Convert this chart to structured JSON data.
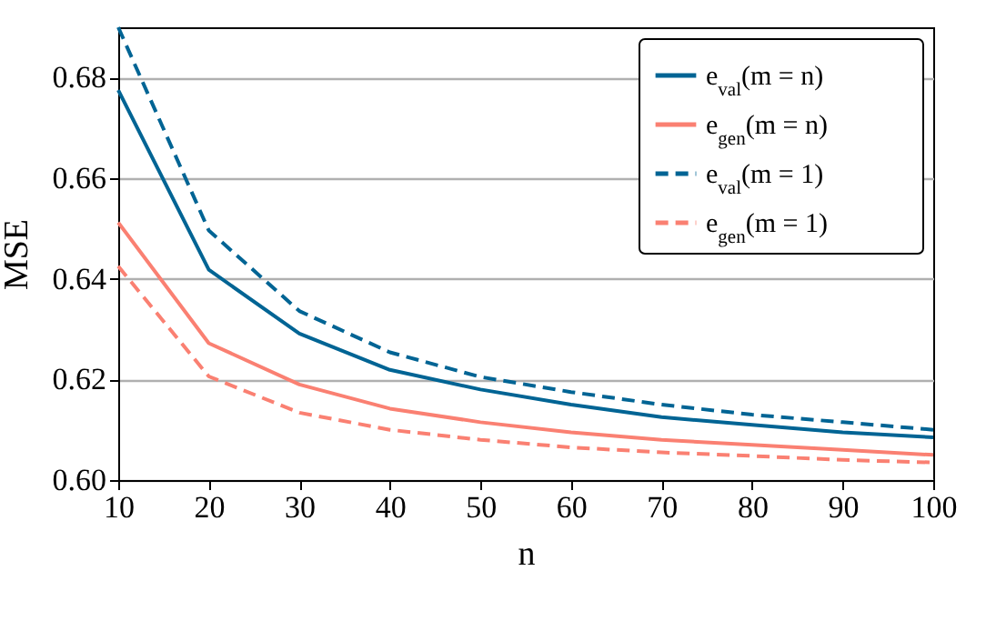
{
  "chart_data": {
    "type": "line",
    "xlabel": "n",
    "ylabel": "MSE",
    "x": [
      10,
      20,
      30,
      40,
      50,
      60,
      70,
      80,
      90,
      100
    ],
    "series": [
      {
        "name": "e$_{val}$(m = n)",
        "color": "#006494",
        "line_style": "solid",
        "values": [
          0.6775,
          0.6418,
          0.6291,
          0.6219,
          0.618,
          0.615,
          0.6125,
          0.611,
          0.6095,
          0.6085
        ]
      },
      {
        "name": "e$_{gen}$(m = n)",
        "color": "#fa8072",
        "line_style": "solid",
        "values": [
          0.6512,
          0.6272,
          0.619,
          0.6142,
          0.6115,
          0.6095,
          0.608,
          0.607,
          0.606,
          0.605
        ]
      },
      {
        "name": "e$_{val}$(m = 1)",
        "color": "#006494",
        "line_style": "dashed",
        "values": [
          0.69,
          0.6496,
          0.6336,
          0.6254,
          0.6205,
          0.6175,
          0.615,
          0.613,
          0.6115,
          0.61
        ]
      },
      {
        "name": "e$_{gen}$(m = 1)",
        "color": "#fa8072",
        "line_style": "dashed",
        "values": [
          0.6425,
          0.6206,
          0.6134,
          0.61,
          0.608,
          0.6065,
          0.6055,
          0.6048,
          0.604,
          0.6035
        ]
      }
    ],
    "xlim": [
      10,
      100
    ],
    "xticks": [
      10,
      20,
      30,
      40,
      50,
      60,
      70,
      80,
      90,
      100
    ],
    "ylim": [
      0.6,
      0.69
    ],
    "yticks": [
      {
        "value": 0.6,
        "label": "0.60"
      },
      {
        "value": 0.62,
        "label": "0.62"
      },
      {
        "value": 0.64,
        "label": "0.64"
      },
      {
        "value": 0.66,
        "label": "0.66"
      },
      {
        "value": 0.68,
        "label": "0.68"
      }
    ],
    "grid": "y",
    "legend": "top right",
    "marker": "none"
  }
}
